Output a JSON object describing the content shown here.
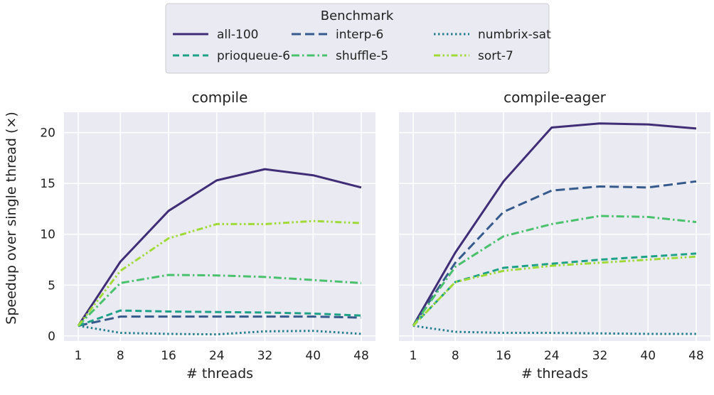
{
  "legend": {
    "title": "Benchmark"
  },
  "ylabel": "Speedup over single thread (×)",
  "xlabel": "# threads",
  "series_styles": [
    {
      "name": "all-100",
      "color": "#3f2d76",
      "dash": "solid"
    },
    {
      "name": "interp-6",
      "color": "#365a8c",
      "dash": "long-dash"
    },
    {
      "name": "numbrix-sat",
      "color": "#277f8e",
      "dash": "dotted"
    },
    {
      "name": "prioqueue-6",
      "color": "#1fa187",
      "dash": "dash"
    },
    {
      "name": "shuffle-5",
      "color": "#4ac16d",
      "dash": "dash-dot"
    },
    {
      "name": "sort-7",
      "color": "#a0da39",
      "dash": "dash-dot-dot"
    }
  ],
  "chart_data": [
    {
      "type": "line",
      "title": "compile",
      "xlabel": "# threads",
      "ylabel": "Speedup over single thread (×)",
      "x": [
        1,
        8,
        16,
        24,
        32,
        40,
        48
      ],
      "x_ticks": [
        "1",
        "8",
        "16",
        "24",
        "32",
        "40",
        "48"
      ],
      "y_ticks": [
        "0",
        "5",
        "10",
        "15",
        "20"
      ],
      "ylim": [
        -0.5,
        22
      ],
      "grid": true,
      "series": [
        {
          "name": "all-100",
          "values": [
            1,
            7.3,
            12.3,
            15.3,
            16.4,
            15.8,
            14.6
          ]
        },
        {
          "name": "interp-6",
          "values": [
            1,
            1.9,
            1.9,
            1.9,
            1.9,
            1.9,
            1.8
          ]
        },
        {
          "name": "numbrix-sat",
          "values": [
            1,
            0.3,
            0.2,
            0.15,
            0.45,
            0.5,
            0.2
          ]
        },
        {
          "name": "prioqueue-6",
          "values": [
            1,
            2.5,
            2.4,
            2.35,
            2.3,
            2.2,
            2.0
          ]
        },
        {
          "name": "shuffle-5",
          "values": [
            1,
            5.2,
            6.0,
            5.95,
            5.8,
            5.5,
            5.2
          ]
        },
        {
          "name": "sort-7",
          "values": [
            1,
            6.4,
            9.6,
            11.0,
            11.0,
            11.3,
            11.1
          ]
        }
      ]
    },
    {
      "type": "line",
      "title": "compile-eager",
      "xlabel": "# threads",
      "ylabel": "",
      "x": [
        1,
        8,
        16,
        24,
        32,
        40,
        48
      ],
      "x_ticks": [
        "1",
        "8",
        "16",
        "24",
        "32",
        "40",
        "48"
      ],
      "ylim": [
        -0.5,
        22
      ],
      "grid": true,
      "series": [
        {
          "name": "all-100",
          "values": [
            1,
            8.2,
            15.2,
            20.5,
            20.9,
            20.8,
            20.4
          ]
        },
        {
          "name": "interp-6",
          "values": [
            1,
            7.2,
            12.2,
            14.3,
            14.7,
            14.6,
            15.2
          ]
        },
        {
          "name": "numbrix-sat",
          "values": [
            1,
            0.4,
            0.3,
            0.3,
            0.25,
            0.2,
            0.2
          ]
        },
        {
          "name": "prioqueue-6",
          "values": [
            1,
            5.3,
            6.7,
            7.1,
            7.5,
            7.8,
            8.1
          ]
        },
        {
          "name": "shuffle-5",
          "values": [
            1,
            6.8,
            9.8,
            11.0,
            11.8,
            11.7,
            11.2
          ]
        },
        {
          "name": "sort-7",
          "values": [
            1,
            5.3,
            6.4,
            6.9,
            7.2,
            7.5,
            7.8
          ]
        }
      ]
    }
  ]
}
